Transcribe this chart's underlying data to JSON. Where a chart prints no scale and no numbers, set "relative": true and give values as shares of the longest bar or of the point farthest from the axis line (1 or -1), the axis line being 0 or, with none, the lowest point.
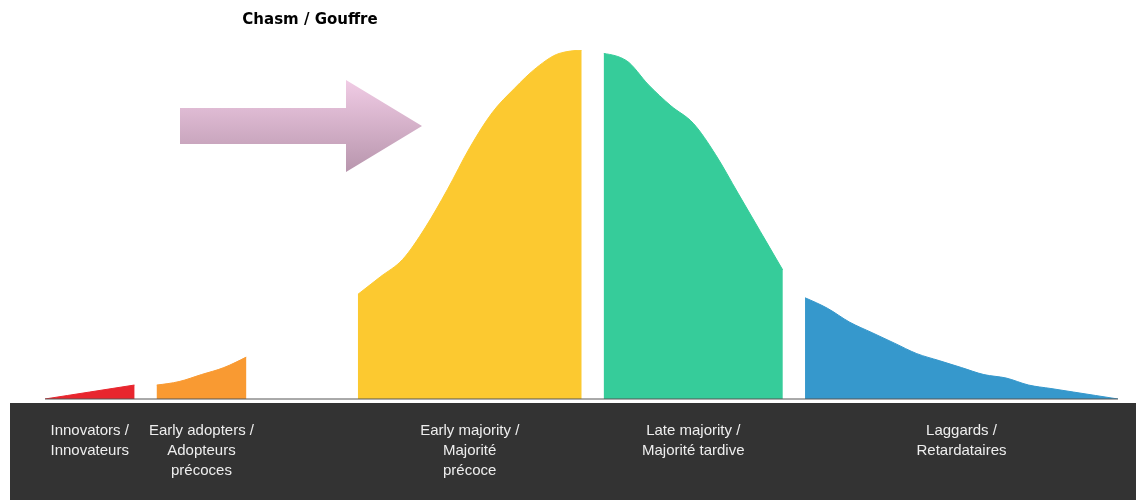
{
  "chart_data": {
    "type": "area",
    "relative": true,
    "title": "Chasm / Gouffre",
    "categories": [
      null,
      null,
      null,
      null,
      null,
      null,
      null,
      null,
      null,
      null,
      null,
      null,
      null,
      null,
      null,
      null,
      null,
      null,
      null,
      null,
      null,
      null,
      null,
      null,
      null,
      null,
      null,
      null,
      null,
      null,
      null,
      null,
      null,
      null,
      null,
      null,
      null,
      null,
      null,
      null,
      null,
      null,
      null,
      null,
      null,
      null,
      null,
      null,
      null
    ],
    "series": [
      {
        "name": "Innovators / Innovateurs",
        "color": "#e8262e",
        "values": [
          0,
          0.01,
          0.02,
          0.03,
          0.04,
          null,
          null,
          null,
          null,
          null,
          null,
          null,
          null,
          null,
          null,
          null,
          null,
          null,
          null,
          null,
          null,
          null,
          null,
          null,
          null,
          null,
          null,
          null,
          null,
          null,
          null,
          null,
          null,
          null,
          null,
          null,
          null,
          null,
          null,
          null,
          null,
          null,
          null,
          null,
          null,
          null,
          null,
          null,
          null
        ]
      },
      {
        "name": "Early adopters / Adopteurs précoces",
        "color": "#f99a32",
        "values": [
          null,
          null,
          null,
          null,
          null,
          0.04,
          0.05,
          0.07,
          0.09,
          0.12,
          null,
          null,
          null,
          null,
          null,
          null,
          null,
          null,
          null,
          null,
          null,
          null,
          null,
          null,
          null,
          null,
          null,
          null,
          null,
          null,
          null,
          null,
          null,
          null,
          null,
          null,
          null,
          null,
          null,
          null,
          null,
          null,
          null,
          null,
          null,
          null,
          null,
          null,
          null
        ]
      },
      {
        "name": "Early majority / Majorité précoce",
        "color": "#fcc930",
        "values": [
          null,
          null,
          null,
          null,
          null,
          null,
          null,
          null,
          null,
          null,
          null,
          null,
          null,
          null,
          0.3,
          0.35,
          0.4,
          0.49,
          0.6,
          0.72,
          0.82,
          0.89,
          0.95,
          0.99,
          1,
          null,
          null,
          null,
          null,
          null,
          null,
          null,
          null,
          null,
          null,
          null,
          null,
          null,
          null,
          null,
          null,
          null,
          null,
          null,
          null,
          null,
          null,
          null,
          null
        ]
      },
      {
        "name": "Late majority / Majorité tardive",
        "color": "#36cc9a",
        "values": [
          null,
          null,
          null,
          null,
          null,
          null,
          null,
          null,
          null,
          null,
          null,
          null,
          null,
          null,
          null,
          null,
          null,
          null,
          null,
          null,
          null,
          null,
          null,
          null,
          null,
          0.99,
          0.97,
          0.9,
          0.84,
          0.79,
          0.7,
          0.59,
          0.48,
          0.37,
          null,
          null,
          null,
          null,
          null,
          null,
          null,
          null,
          null,
          null,
          null,
          null,
          null,
          null,
          null
        ]
      },
      {
        "name": "Laggards / Retardataires",
        "color": "#3698cc",
        "values": [
          null,
          null,
          null,
          null,
          null,
          null,
          null,
          null,
          null,
          null,
          null,
          null,
          null,
          null,
          null,
          null,
          null,
          null,
          null,
          null,
          null,
          null,
          null,
          null,
          null,
          null,
          null,
          null,
          null,
          null,
          null,
          null,
          null,
          null,
          0.29,
          0.26,
          0.22,
          0.19,
          0.16,
          0.13,
          0.11,
          0.09,
          0.07,
          0.06,
          0.04,
          0.03,
          0.02,
          0.01,
          0
        ]
      }
    ]
  }
}
